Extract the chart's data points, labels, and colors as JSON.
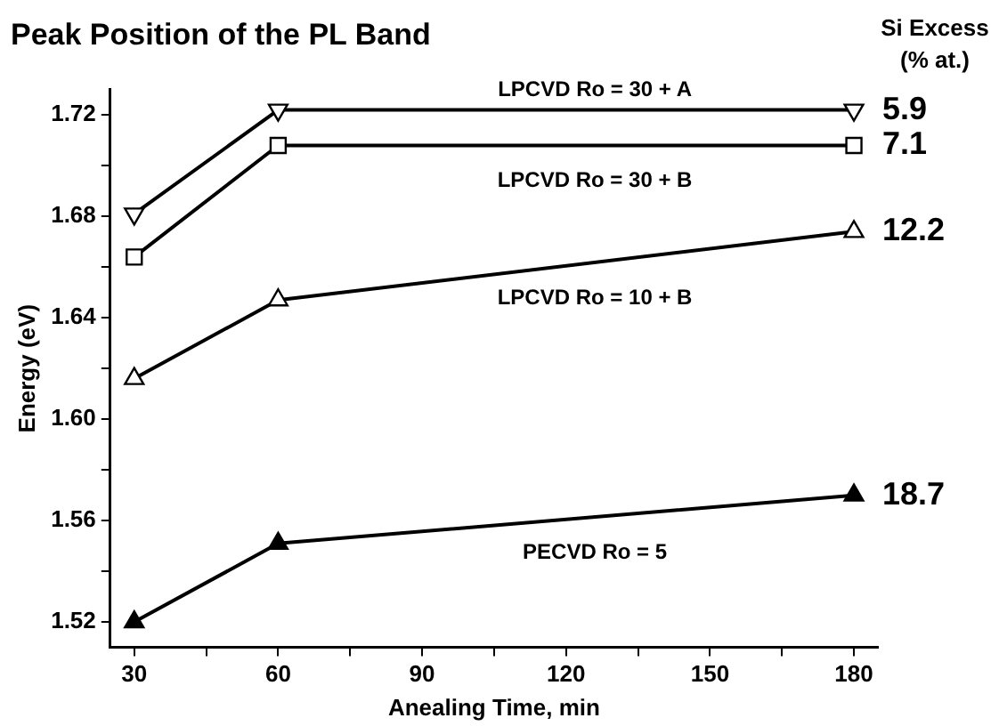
{
  "chart_data": {
    "type": "line",
    "title": "Peak Position of the PL Band",
    "xlabel": "Anealing Time, min",
    "ylabel": "Energy (eV)",
    "x": [
      30,
      60,
      180
    ],
    "series": [
      {
        "name": "LPCVD Ro = 30 + A",
        "color": "#000000",
        "marker": "triangle-down-open",
        "values": [
          1.681,
          1.722,
          1.722
        ]
      },
      {
        "name": "LPCVD Ro = 30 + B",
        "color": "#000000",
        "marker": "square-open",
        "values": [
          1.664,
          1.708,
          1.708
        ]
      },
      {
        "name": "LPCVD Ro = 10 + B",
        "color": "#000000",
        "marker": "triangle-open",
        "values": [
          1.616,
          1.647,
          1.674
        ]
      },
      {
        "name": "PECVD Ro = 5",
        "color": "#000000",
        "marker": "triangle",
        "values": [
          1.52,
          1.551,
          1.57
        ]
      }
    ],
    "xlim": [
      25,
      185
    ],
    "xticks": [
      30,
      {
        "value": 45,
        "label": null
      },
      60,
      {
        "value": 75,
        "label": null
      },
      90,
      {
        "value": 105,
        "label": null
      },
      120,
      {
        "value": 135,
        "label": null
      },
      150,
      {
        "value": 165,
        "label": null
      },
      180
    ],
    "ylim": [
      1.51,
      1.73
    ],
    "yticks": [
      {
        "value": 1.52,
        "label": "1.52"
      },
      {
        "value": 1.54,
        "label": null
      },
      {
        "value": 1.56,
        "label": "1.56"
      },
      {
        "value": 1.58,
        "label": null
      },
      {
        "value": 1.6,
        "label": "1.60"
      },
      {
        "value": 1.62,
        "label": null
      },
      {
        "value": 1.64,
        "label": "1.64"
      },
      {
        "value": 1.66,
        "label": null
      },
      {
        "value": 1.68,
        "label": "1.68"
      },
      {
        "value": 1.7,
        "label": null
      },
      {
        "value": 1.72,
        "label": "1.72"
      }
    ],
    "annotations": [
      "Si Excess",
      "(% at.)",
      "5.9",
      "7.1",
      "12.2",
      "18.7"
    ],
    "grid": false,
    "legend": false,
    "line_style": "solid"
  }
}
